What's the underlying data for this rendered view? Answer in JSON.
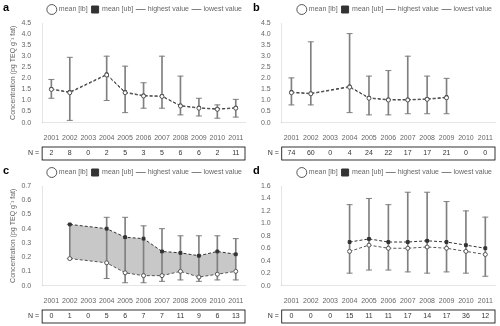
{
  "chart_data": [
    {
      "type": "line",
      "title": "a",
      "ylabel": "Concentration (pg TEQ g⁻¹ fat)",
      "categories": [
        "2001",
        "2002",
        "2003",
        "2004",
        "2005",
        "2006",
        "2007",
        "2008",
        "2009",
        "2010",
        "2011"
      ],
      "series": [
        {
          "name": "mean [lb]",
          "type": "line",
          "color": "#555555",
          "marker": "circle",
          "line_style": "dashed",
          "values": [
            1.5,
            1.35,
            null,
            2.15,
            1.35,
            1.2,
            1.18,
            0.75,
            0.65,
            0.6,
            0.65
          ]
        },
        {
          "name": "mean [ub]",
          "type": "line",
          "color": "#333333",
          "marker": "square",
          "line_style": "dashed",
          "values": [
            1.52,
            1.38,
            null,
            2.18,
            1.38,
            1.22,
            1.2,
            0.77,
            0.67,
            0.62,
            0.67
          ]
        },
        {
          "name": "highest value",
          "type": "errorbar",
          "color": "#808080",
          "marker": "dash",
          "values": [
            1.95,
            2.95,
            null,
            3.0,
            2.55,
            1.8,
            3.0,
            2.1,
            1.1,
            0.8,
            1.05
          ]
        },
        {
          "name": "lowest value",
          "type": "errorbar",
          "color": "#808080",
          "marker": "dash",
          "values": [
            1.1,
            0.1,
            null,
            1.0,
            0.45,
            0.65,
            0.65,
            0.35,
            0.3,
            0.2,
            0.25
          ]
        }
      ],
      "ylim": [
        0,
        4.5
      ],
      "yticks": [
        {
          "value": 0,
          "label": "0.0"
        },
        0.5,
        {
          "value": 1,
          "label": "1.0"
        },
        1.5,
        {
          "value": 2,
          "label": "2.0"
        },
        2.5,
        {
          "value": 3,
          "label": "3.0"
        },
        3.5,
        {
          "value": 4,
          "label": "4.0"
        },
        4.5
      ],
      "grid": false,
      "legend": "upper right",
      "n_label": "N =",
      "n_values": [
        2,
        8,
        0,
        2,
        5,
        3,
        5,
        6,
        6,
        2,
        11
      ]
    },
    {
      "type": "line",
      "title": "b",
      "categories": [
        "2001",
        "2002",
        "2003",
        "2004",
        "2005",
        "2006",
        "2007",
        "2008",
        "2009",
        "2010",
        "2011"
      ],
      "series": [
        {
          "name": "mean [lb]",
          "type": "line",
          "color": "#555555",
          "marker": "circle",
          "line_style": "dashed",
          "values": [
            1.35,
            1.3,
            null,
            1.6,
            1.1,
            1.02,
            1.02,
            1.05,
            1.12,
            null,
            null
          ]
        },
        {
          "name": "mean [ub]",
          "type": "line",
          "color": "#333333",
          "marker": "square",
          "line_style": "dashed",
          "values": [
            1.38,
            1.32,
            null,
            1.63,
            1.12,
            1.04,
            1.04,
            1.07,
            1.15,
            null,
            null
          ]
        },
        {
          "name": "highest value",
          "type": "errorbar",
          "color": "#808080",
          "marker": "dash",
          "values": [
            2.02,
            3.65,
            null,
            4.02,
            2.1,
            2.35,
            3.0,
            2.1,
            2.0,
            null,
            null
          ]
        },
        {
          "name": "lowest value",
          "type": "errorbar",
          "color": "#808080",
          "marker": "dash",
          "values": [
            0.8,
            0.8,
            null,
            0.45,
            0.35,
            0.35,
            0.4,
            0.4,
            0.4,
            null,
            null
          ]
        }
      ],
      "ylim": [
        0,
        4.5
      ],
      "yticks": [
        {
          "value": 0,
          "label": "0.0"
        },
        0.5,
        {
          "value": 1,
          "label": "1.0"
        },
        1.5,
        {
          "value": 2,
          "label": "2.0"
        },
        2.5,
        {
          "value": 3,
          "label": "3.0"
        },
        3.5,
        {
          "value": 4,
          "label": "4.0"
        },
        4.5
      ],
      "grid": false,
      "legend": "upper right",
      "n_label": "N =",
      "n_values": [
        74,
        60,
        0,
        4,
        24,
        22,
        17,
        17,
        21,
        0,
        0
      ]
    },
    {
      "type": "line",
      "title": "c",
      "ylabel": "Concentration (pg TEQ g⁻¹ fat)",
      "categories": [
        "2001",
        "2002",
        "2003",
        "2004",
        "2005",
        "2006",
        "2007",
        "2008",
        "2009",
        "2010",
        "2011"
      ],
      "series": [
        {
          "name": "mean [lb]",
          "type": "line",
          "color": "#555555",
          "marker": "circle",
          "line_style": "dashed",
          "values": [
            null,
            0.19,
            null,
            0.16,
            0.09,
            0.07,
            0.07,
            0.1,
            0.06,
            0.08,
            0.1
          ]
        },
        {
          "name": "mean [ub]",
          "type": "line",
          "color": "#333333",
          "marker": "square",
          "line_style": "dashed",
          "values": [
            null,
            0.43,
            null,
            0.4,
            0.34,
            0.33,
            0.24,
            0.23,
            0.21,
            0.24,
            0.22
          ]
        },
        {
          "name": "highest value",
          "type": "errorbar",
          "color": "#808080",
          "marker": "dash",
          "values": [
            null,
            0.43,
            null,
            0.48,
            0.48,
            0.42,
            0.4,
            0.35,
            0.35,
            0.35,
            0.33
          ]
        },
        {
          "name": "lowest value",
          "type": "errorbar",
          "color": "#808080",
          "marker": "dash",
          "values": [
            null,
            0.19,
            null,
            0.05,
            0.02,
            0.02,
            0.03,
            0.04,
            0.03,
            0.04,
            0.04
          ]
        },
        {
          "type": "band",
          "color": "#c8c8c8",
          "values": [
            null,
            [
              0.19,
              0.43
            ],
            null,
            [
              0.16,
              0.4
            ],
            [
              0.09,
              0.34
            ],
            [
              0.07,
              0.33
            ],
            [
              0.07,
              0.24
            ],
            [
              0.1,
              0.23
            ],
            [
              0.06,
              0.21
            ],
            [
              0.08,
              0.24
            ],
            [
              0.1,
              0.22
            ]
          ]
        }
      ],
      "ylim": [
        0,
        0.7
      ],
      "yticks": [
        {
          "value": 0,
          "label": "0.0"
        },
        0.1,
        0.2,
        0.3,
        0.4,
        0.5,
        0.6,
        0.7
      ],
      "grid": false,
      "legend": "upper right",
      "n_label": "N =",
      "n_values": [
        0,
        1,
        0,
        5,
        6,
        7,
        7,
        11,
        9,
        6,
        13
      ]
    },
    {
      "type": "line",
      "title": "d",
      "categories": [
        "2001",
        "2002",
        "2003",
        "2004",
        "2005",
        "2006",
        "2007",
        "2008",
        "2009",
        "2010",
        "2011"
      ],
      "series": [
        {
          "name": "mean [lb]",
          "type": "line",
          "color": "#555555",
          "marker": "circle",
          "line_style": "dashed",
          "values": [
            null,
            null,
            null,
            0.55,
            0.65,
            0.6,
            0.6,
            0.62,
            0.6,
            0.55,
            0.5
          ]
        },
        {
          "name": "mean [ub]",
          "type": "line",
          "color": "#333333",
          "marker": "square",
          "line_style": "dashed",
          "values": [
            null,
            null,
            null,
            0.7,
            0.75,
            0.7,
            0.7,
            0.72,
            0.7,
            0.65,
            0.6
          ]
        },
        {
          "name": "highest value",
          "type": "errorbar",
          "color": "#808080",
          "marker": "dash",
          "values": [
            null,
            null,
            null,
            1.3,
            1.4,
            1.3,
            1.5,
            1.5,
            1.35,
            1.2,
            1.1
          ]
        },
        {
          "name": "lowest value",
          "type": "errorbar",
          "color": "#808080",
          "marker": "dash",
          "values": [
            null,
            null,
            null,
            0.2,
            0.25,
            0.25,
            0.22,
            0.2,
            0.22,
            0.2,
            0.15
          ]
        }
      ],
      "ylim": [
        0,
        1.6
      ],
      "yticks": [
        {
          "value": 0,
          "label": "0.0"
        },
        0.2,
        0.4,
        0.6,
        0.8,
        {
          "value": 1,
          "label": "1.0"
        },
        1.2,
        1.4,
        1.6
      ],
      "grid": false,
      "legend": "upper right",
      "n_label": "N =",
      "n_values": [
        0,
        0,
        0,
        15,
        11,
        11,
        17,
        14,
        17,
        36,
        12
      ]
    }
  ]
}
